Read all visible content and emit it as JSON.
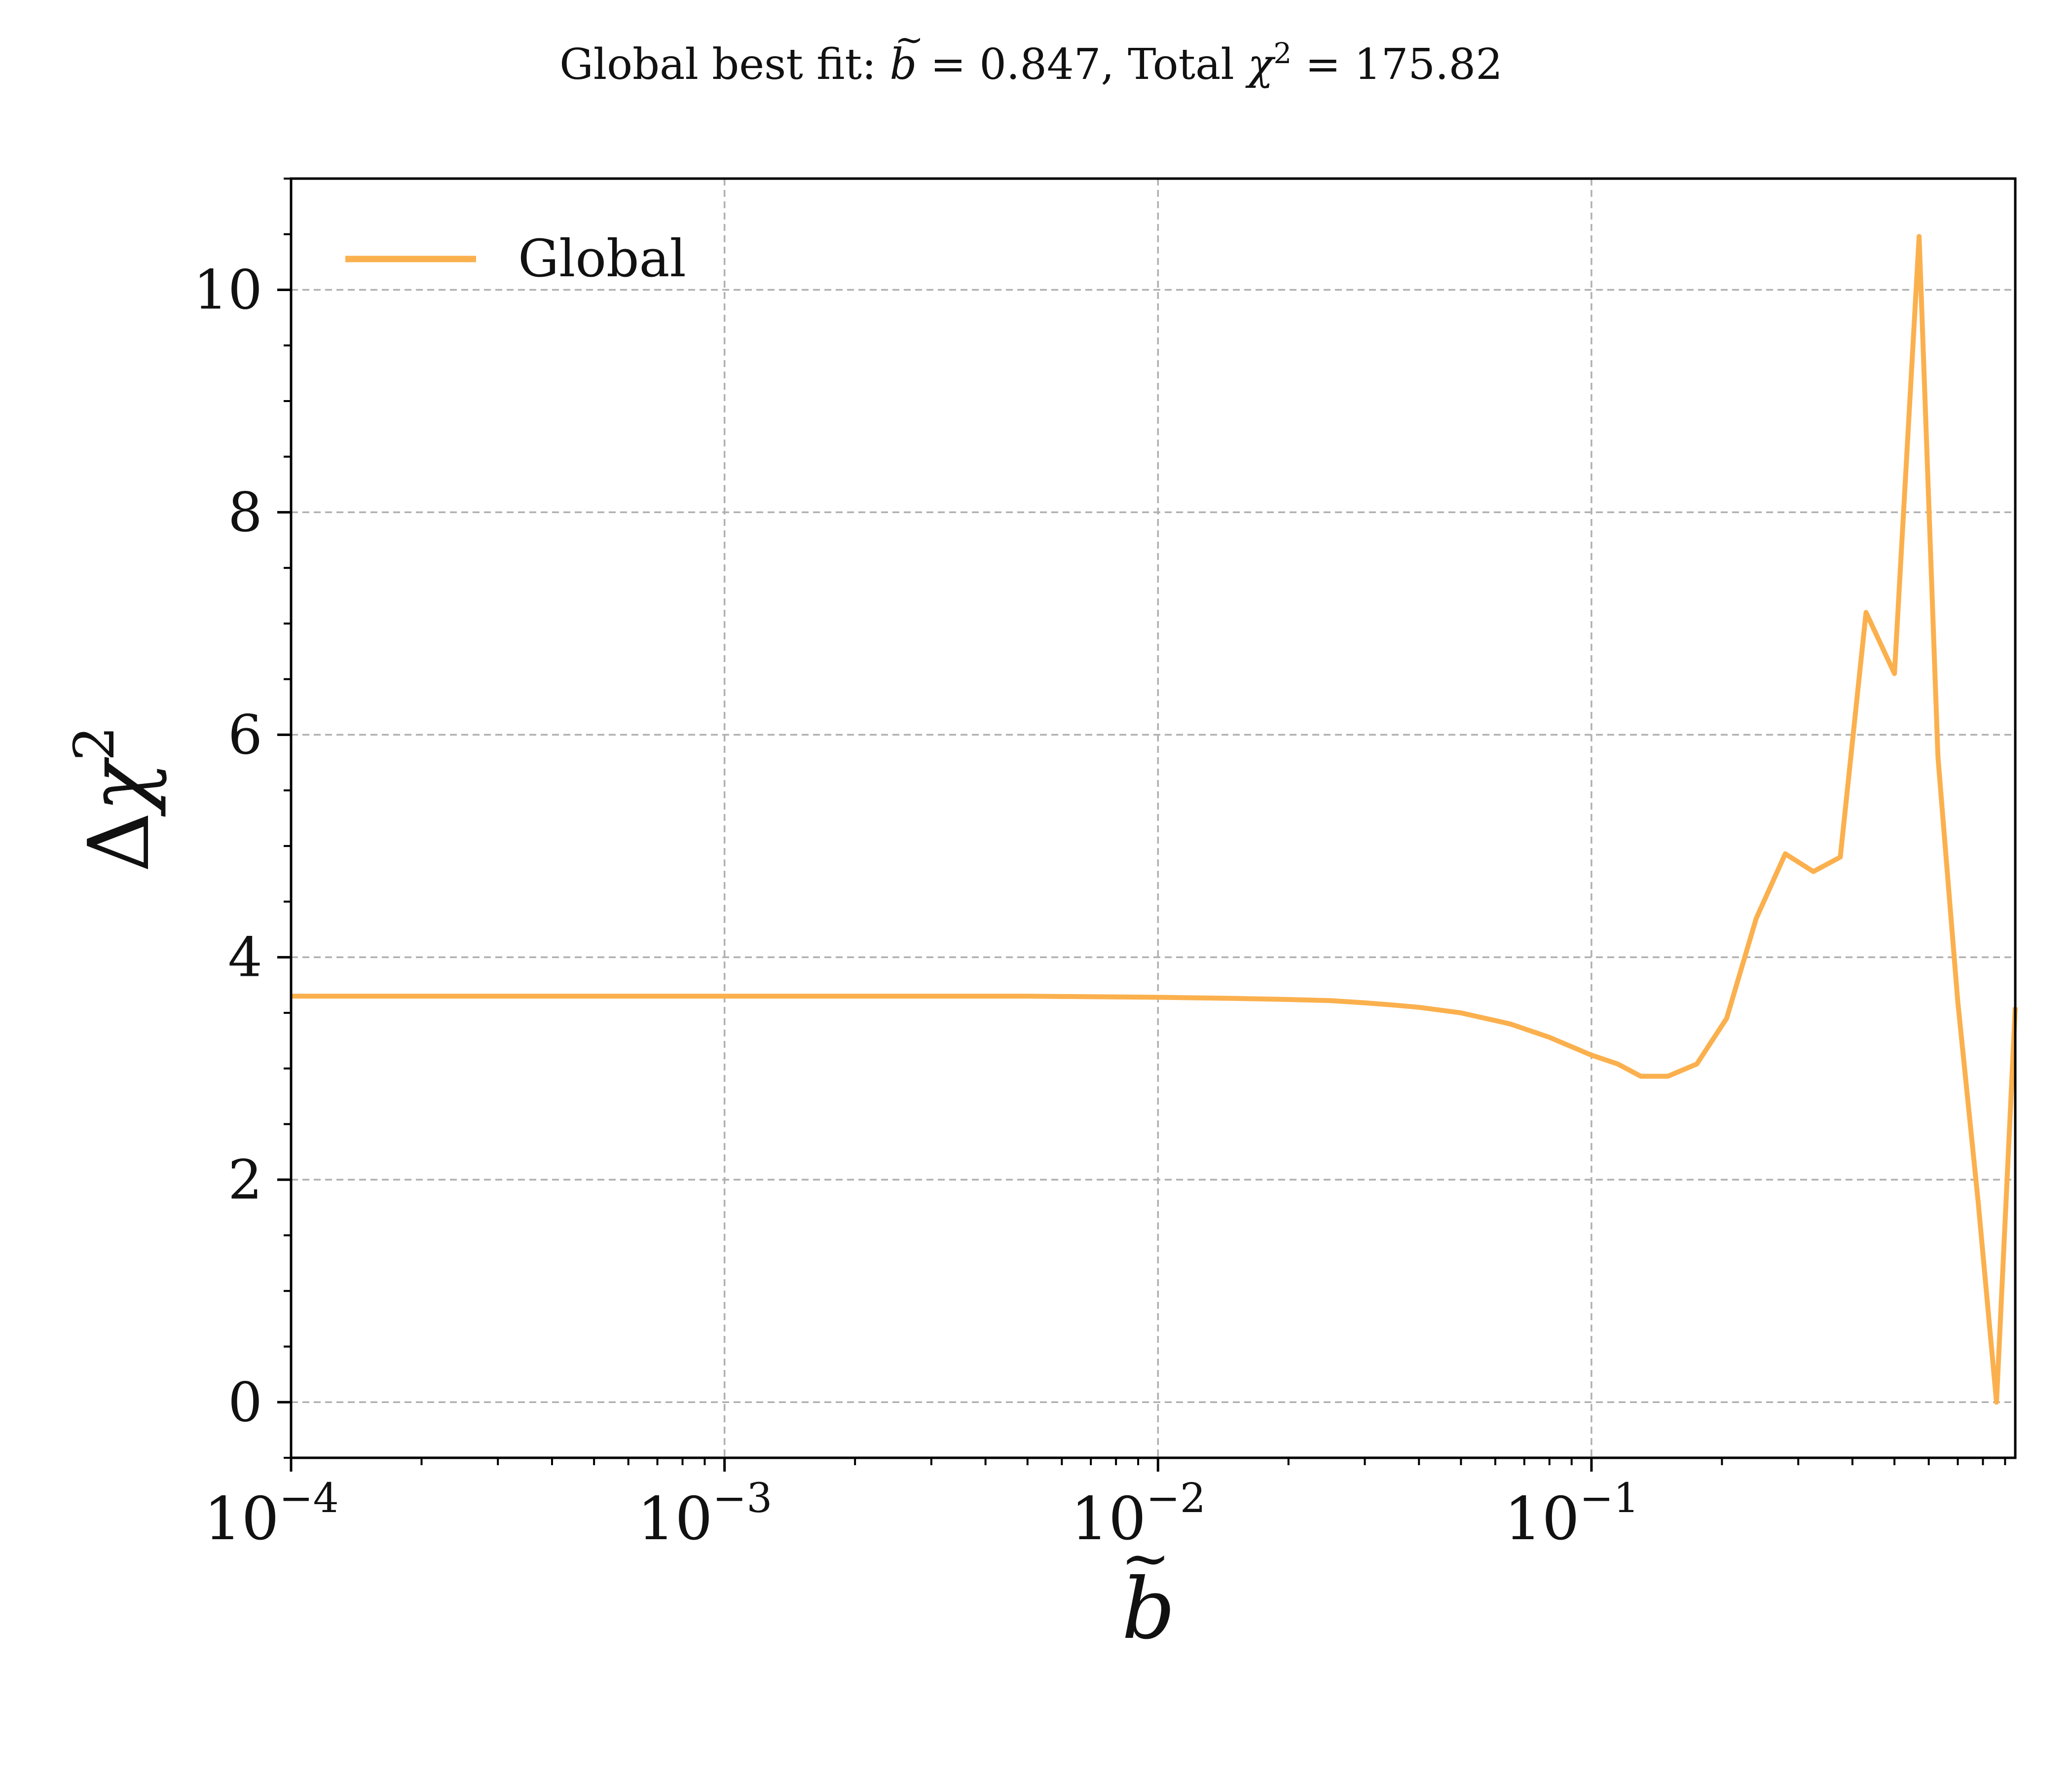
{
  "chart_data": {
    "type": "line",
    "title": {
      "prefix": "Global best fit: ",
      "b_symbol": "b",
      "b_value": " = 0.847, Total ",
      "chi_symbol": "χ",
      "chi_exp": "2",
      "chi_value": " = 175.82"
    },
    "xlabel": "b",
    "ylabel": {
      "delta": "Δ",
      "chi": "χ",
      "exp": "2"
    },
    "x_scale": "log",
    "xlim": [
      0.0001,
      0.95
    ],
    "ylim": [
      -0.5,
      11
    ],
    "grid": true,
    "legend": {
      "position": "top-left",
      "entries": [
        "Global"
      ]
    },
    "x_ticks": [
      {
        "base": "10",
        "exp": "−4",
        "value": 0.0001
      },
      {
        "base": "10",
        "exp": "−3",
        "value": 0.001
      },
      {
        "base": "10",
        "exp": "−2",
        "value": 0.01
      },
      {
        "base": "10",
        "exp": "−1",
        "value": 0.1
      }
    ],
    "y_ticks": [
      {
        "label": "0",
        "value": 0
      },
      {
        "label": "2",
        "value": 2
      },
      {
        "label": "4",
        "value": 4
      },
      {
        "label": "6",
        "value": 6
      },
      {
        "label": "8",
        "value": 8
      },
      {
        "label": "10",
        "value": 10
      }
    ],
    "colors": {
      "line": "#fbb04e",
      "grid": "#b0b0b0",
      "axis": "#000000"
    },
    "series": [
      {
        "name": "Global",
        "x": [
          0.0001,
          0.0002,
          0.0005,
          0.001,
          0.002,
          0.005,
          0.01,
          0.015,
          0.02,
          0.025,
          0.03,
          0.035,
          0.04,
          0.05,
          0.065,
          0.08,
          0.1,
          0.115,
          0.13,
          0.15,
          0.175,
          0.205,
          0.24,
          0.28,
          0.325,
          0.375,
          0.43,
          0.5,
          0.57,
          0.63,
          0.7,
          0.78,
          0.86,
          0.95
        ],
        "y": [
          3.65,
          3.65,
          3.65,
          3.65,
          3.65,
          3.65,
          3.64,
          3.63,
          3.62,
          3.61,
          3.59,
          3.57,
          3.55,
          3.5,
          3.4,
          3.28,
          3.12,
          3.04,
          2.93,
          2.93,
          3.04,
          3.45,
          4.35,
          4.93,
          4.77,
          4.9,
          7.1,
          6.55,
          10.48,
          5.8,
          3.6,
          1.8,
          0.0,
          3.55
        ]
      }
    ]
  }
}
